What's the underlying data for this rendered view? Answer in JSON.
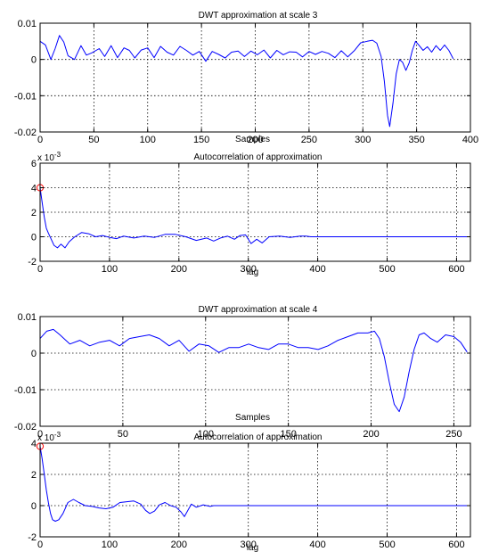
{
  "chart_data": [
    {
      "type": "line",
      "title": "DWT approximation at scale 3",
      "xlabel": "Samples",
      "ylabel": "",
      "xlim": [
        0,
        400
      ],
      "ylim": [
        -0.02,
        0.01
      ],
      "xticks": [
        0,
        50,
        100,
        150,
        200,
        250,
        300,
        350,
        400
      ],
      "yticks": [
        -0.02,
        -0.01,
        0,
        0.01
      ],
      "xtick_labels": [
        "0",
        "50",
        "100",
        "150",
        "200",
        "250",
        "300",
        "350",
        "400"
      ],
      "ytick_labels": [
        "-0.02",
        "-0.01",
        "0",
        "0.01"
      ],
      "grid": true,
      "line_color": "#0000ff",
      "series": [
        {
          "x": [
            0,
            5,
            10,
            14,
            18,
            22,
            26,
            32,
            38,
            43,
            48,
            55,
            60,
            66,
            72,
            78,
            83,
            88,
            94,
            100,
            106,
            112,
            118,
            124,
            130,
            136,
            142,
            148,
            154,
            160,
            166,
            172,
            178,
            184,
            190,
            196,
            202,
            208,
            214,
            220,
            226,
            232,
            238,
            244,
            250,
            256,
            262,
            268,
            274,
            280,
            286,
            292,
            298,
            304,
            309,
            313,
            317,
            320,
            323,
            325,
            328,
            331,
            334,
            337,
            340,
            343,
            346,
            349,
            352,
            356,
            360,
            364,
            368,
            372,
            376,
            380,
            384
          ],
          "y": [
            0.005,
            0.004,
            0.0,
            0.003,
            0.0066,
            0.0048,
            0.001,
            0.0,
            0.0038,
            0.0012,
            0.0018,
            0.003,
            0.0008,
            0.0038,
            0.0005,
            0.0032,
            0.0025,
            0.0004,
            0.0026,
            0.0032,
            0.0005,
            0.0036,
            0.002,
            0.0012,
            0.0036,
            0.0025,
            0.0012,
            0.0022,
            -0.0005,
            0.0022,
            0.0014,
            0.0004,
            0.002,
            0.0023,
            0.0008,
            0.0023,
            0.0013,
            0.0026,
            0.0004,
            0.0025,
            0.0013,
            0.0021,
            0.002,
            0.0007,
            0.0022,
            0.0014,
            0.0022,
            0.0017,
            0.0005,
            0.0024,
            0.0007,
            0.0024,
            0.0046,
            0.005,
            0.0053,
            0.0045,
            0.0008,
            -0.006,
            -0.0155,
            -0.0185,
            -0.012,
            -0.004,
            0.0,
            -0.0008,
            -0.003,
            -0.001,
            0.0025,
            0.005,
            0.004,
            0.0025,
            0.0035,
            0.002,
            0.0038,
            0.0025,
            0.004,
            0.0025,
            0.0002
          ]
        }
      ]
    },
    {
      "type": "line",
      "title": "Autocorrelation of approximation",
      "xlabel": "lag",
      "ylabel": "",
      "y_multiplier": "x 10",
      "y_multiplier_exponent": "-3",
      "xlim": [
        0,
        620
      ],
      "ylim": [
        -2,
        6
      ],
      "xticks": [
        0,
        100,
        200,
        300,
        400,
        500,
        600
      ],
      "yticks": [
        -2,
        0,
        2,
        4,
        6
      ],
      "xtick_labels": [
        "0",
        "100",
        "200",
        "300",
        "400",
        "500",
        "600"
      ],
      "ytick_labels": [
        "-2",
        "0",
        "2",
        "4",
        "6"
      ],
      "grid": true,
      "line_color": "#0000ff",
      "marker": {
        "x": 0,
        "y": 4.0,
        "color": "#ff0000",
        "shape": "circle"
      },
      "series": [
        {
          "x": [
            0,
            3,
            6,
            9,
            12,
            16,
            20,
            25,
            30,
            36,
            42,
            50,
            60,
            70,
            80,
            90,
            100,
            110,
            120,
            135,
            150,
            165,
            180,
            195,
            210,
            225,
            240,
            250,
            260,
            270,
            280,
            288,
            296,
            304,
            312,
            320,
            330,
            345,
            360,
            375,
            383,
            390,
            620
          ],
          "y": [
            4.0,
            2.8,
            1.6,
            0.7,
            0.3,
            -0.2,
            -0.7,
            -0.9,
            -0.6,
            -0.9,
            -0.4,
            0.0,
            0.35,
            0.25,
            0.0,
            0.1,
            -0.05,
            -0.15,
            0.05,
            -0.1,
            0.05,
            -0.05,
            0.2,
            0.2,
            0.0,
            -0.3,
            -0.1,
            -0.35,
            -0.1,
            0.05,
            -0.2,
            0.1,
            0.15,
            -0.55,
            -0.2,
            -0.5,
            0.0,
            0.05,
            -0.05,
            0.05,
            0.05,
            0.0,
            0.0
          ]
        }
      ]
    },
    {
      "type": "line",
      "title": "DWT approximation at scale 4",
      "xlabel": "Samples",
      "ylabel": "",
      "xlim": [
        0,
        260
      ],
      "ylim": [
        -0.02,
        0.01
      ],
      "xticks": [
        0,
        50,
        100,
        150,
        200,
        250
      ],
      "yticks": [
        -0.02,
        -0.01,
        0,
        0.01
      ],
      "xtick_labels": [
        "0",
        "50",
        "100",
        "150",
        "200",
        "250"
      ],
      "ytick_labels": [
        "-0.02",
        "-0.01",
        "0",
        "0.01"
      ],
      "grid": true,
      "line_color": "#0000ff",
      "series": [
        {
          "x": [
            0,
            4,
            8,
            12,
            18,
            24,
            30,
            36,
            42,
            48,
            54,
            60,
            66,
            72,
            78,
            84,
            90,
            96,
            102,
            108,
            114,
            120,
            126,
            132,
            138,
            144,
            150,
            156,
            162,
            168,
            174,
            180,
            186,
            192,
            198,
            202,
            205,
            208,
            211,
            214,
            217,
            220,
            223,
            226,
            229,
            232,
            236,
            240,
            245,
            250,
            254,
            258
          ],
          "y": [
            0.004,
            0.006,
            0.0065,
            0.005,
            0.0025,
            0.0035,
            0.002,
            0.003,
            0.0035,
            0.002,
            0.004,
            0.0045,
            0.005,
            0.004,
            0.002,
            0.0035,
            0.0005,
            0.0025,
            0.002,
            0.0002,
            0.0015,
            0.0015,
            0.0025,
            0.0015,
            0.001,
            0.0025,
            0.0025,
            0.0015,
            0.0015,
            0.001,
            0.002,
            0.0035,
            0.0045,
            0.0055,
            0.0055,
            0.006,
            0.004,
            -0.001,
            -0.008,
            -0.014,
            -0.016,
            -0.012,
            -0.005,
            0.001,
            0.005,
            0.0055,
            0.004,
            0.003,
            0.005,
            0.0045,
            0.003,
            0.0003
          ]
        }
      ]
    },
    {
      "type": "line",
      "title": "Autocorrelation of approximation",
      "xlabel": "lag",
      "ylabel": "",
      "y_multiplier": "x 10",
      "y_multiplier_exponent": "-3",
      "xlim": [
        0,
        620
      ],
      "ylim": [
        -2,
        4
      ],
      "xticks": [
        0,
        100,
        200,
        300,
        400,
        500,
        600
      ],
      "yticks": [
        -2,
        0,
        2,
        4
      ],
      "xtick_labels": [
        "0",
        "100",
        "200",
        "300",
        "400",
        "500",
        "600"
      ],
      "ytick_labels": [
        "-2",
        "0",
        "2",
        "4"
      ],
      "grid": true,
      "line_color": "#0000ff",
      "marker": {
        "x": 0,
        "y": 3.8,
        "color": "#ff0000",
        "shape": "circle"
      },
      "series": [
        {
          "x": [
            0,
            3,
            6,
            9,
            12,
            15,
            18,
            22,
            27,
            33,
            40,
            48,
            56,
            65,
            75,
            85,
            95,
            105,
            115,
            125,
            135,
            145,
            152,
            158,
            165,
            172,
            180,
            188,
            196,
            203,
            208,
            213,
            218,
            225,
            235,
            245,
            250,
            255,
            620
          ],
          "y": [
            3.8,
            3.0,
            2.0,
            1.0,
            0.2,
            -0.5,
            -0.9,
            -1.0,
            -0.9,
            -0.5,
            0.2,
            0.4,
            0.2,
            0.0,
            -0.05,
            -0.15,
            -0.2,
            -0.1,
            0.2,
            0.25,
            0.3,
            0.1,
            -0.3,
            -0.5,
            -0.35,
            0.05,
            0.2,
            0.0,
            -0.1,
            -0.4,
            -0.7,
            -0.3,
            0.1,
            -0.1,
            0.05,
            -0.05,
            0.0,
            0.0,
            0.0
          ]
        }
      ]
    }
  ]
}
